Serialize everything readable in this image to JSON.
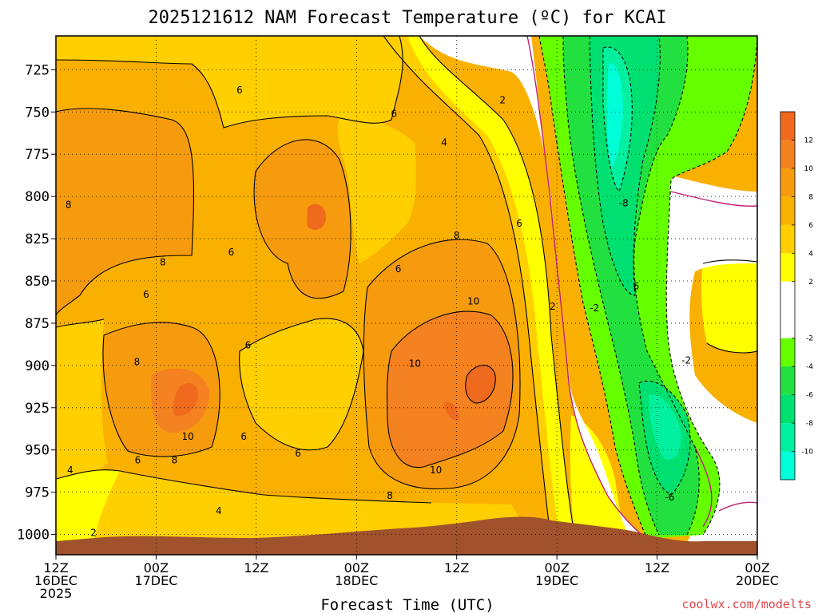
{
  "chart_data": {
    "type": "heatmap",
    "title": "2025121612 NAM Forecast Temperature (ºC) for KCAI",
    "xlabel": "Forecast Time (UTC)",
    "ylabel": "",
    "credit": "coolwx.com/modelts",
    "x_ticks": [
      {
        "hours": 0,
        "line1": "12Z",
        "line2": "16DEC",
        "line3": "2025"
      },
      {
        "hours": 12,
        "line1": "00Z",
        "line2": "17DEC",
        "line3": ""
      },
      {
        "hours": 24,
        "line1": "12Z",
        "line2": "",
        "line3": ""
      },
      {
        "hours": 36,
        "line1": "00Z",
        "line2": "18DEC",
        "line3": ""
      },
      {
        "hours": 48,
        "line1": "12Z",
        "line2": "",
        "line3": ""
      },
      {
        "hours": 60,
        "line1": "00Z",
        "line2": "19DEC",
        "line3": ""
      },
      {
        "hours": 72,
        "line1": "12Z",
        "line2": "",
        "line3": ""
      },
      {
        "hours": 84,
        "line1": "00Z",
        "line2": "20DEC",
        "line3": ""
      }
    ],
    "xlim": [
      0,
      84
    ],
    "y_ticks": [
      "725",
      "750",
      "775",
      "800",
      "825",
      "850",
      "875",
      "900",
      "925",
      "950",
      "975",
      "1000"
    ],
    "ylim": [
      705,
      1012
    ],
    "y_inverted": true,
    "grid": "dotted",
    "colorbar": {
      "ticks": [
        "12",
        "10",
        "8",
        "6",
        "4",
        "2",
        "-2",
        "-4",
        "-6",
        "-8",
        "-10"
      ],
      "bins": [
        {
          "from": 12,
          "to": 14,
          "color": "#f06a1e"
        },
        {
          "from": 10,
          "to": 12,
          "color": "#f58220"
        },
        {
          "from": 8,
          "to": 10,
          "color": "#f79b0e"
        },
        {
          "from": 6,
          "to": 8,
          "color": "#fab000"
        },
        {
          "from": 4,
          "to": 6,
          "color": "#ffcf00"
        },
        {
          "from": 2,
          "to": 4,
          "color": "#ffff00"
        },
        {
          "from": -2,
          "to": 2,
          "color": "#ffffff"
        },
        {
          "from": -4,
          "to": -2,
          "color": "#66ff00"
        },
        {
          "from": -6,
          "to": -4,
          "color": "#22e040"
        },
        {
          "from": -8,
          "to": -6,
          "color": "#00e070"
        },
        {
          "from": -10,
          "to": -8,
          "color": "#00f0a0"
        },
        {
          "from": -12,
          "to": -10,
          "color": "#00ffd8"
        }
      ]
    },
    "contour_labels": [
      {
        "text": "6",
        "hours": 22,
        "p": 737
      },
      {
        "text": "2",
        "hours": 53.5,
        "p": 743
      },
      {
        "text": "6",
        "hours": 40.5,
        "p": 751
      },
      {
        "text": "4",
        "hours": 46.5,
        "p": 768
      },
      {
        "text": "8",
        "hours": 1.5,
        "p": 805
      },
      {
        "text": "-8",
        "hours": 68,
        "p": 804
      },
      {
        "text": "6",
        "hours": 55.5,
        "p": 816
      },
      {
        "text": "8",
        "hours": 48,
        "p": 823
      },
      {
        "text": "6",
        "hours": 21,
        "p": 833
      },
      {
        "text": "8",
        "hours": 12.8,
        "p": 839
      },
      {
        "text": "6",
        "hours": 41,
        "p": 843
      },
      {
        "text": "6",
        "hours": 69.5,
        "p": 853
      },
      {
        "text": "6",
        "hours": 10.8,
        "p": 858
      },
      {
        "text": "10",
        "hours": 50,
        "p": 862
      },
      {
        "text": "2",
        "hours": 59.5,
        "p": 865
      },
      {
        "text": "-2",
        "hours": 64.5,
        "p": 866
      },
      {
        "text": "6",
        "hours": 23,
        "p": 888
      },
      {
        "text": "8",
        "hours": 9.7,
        "p": 898
      },
      {
        "text": "-2",
        "hours": 75.5,
        "p": 897
      },
      {
        "text": "10",
        "hours": 43,
        "p": 899
      },
      {
        "text": "10",
        "hours": 15.8,
        "p": 942
      },
      {
        "text": "6",
        "hours": 22.5,
        "p": 942
      },
      {
        "text": "6",
        "hours": 29,
        "p": 952
      },
      {
        "text": "6",
        "hours": 9.8,
        "p": 956
      },
      {
        "text": "8",
        "hours": 14.2,
        "p": 956
      },
      {
        "text": "4",
        "hours": 1.7,
        "p": 962
      },
      {
        "text": "10",
        "hours": 45.5,
        "p": 962
      },
      {
        "text": "8",
        "hours": 40,
        "p": 977
      },
      {
        "text": "-6",
        "hours": 73.5,
        "p": 978
      },
      {
        "text": "4",
        "hours": 19.5,
        "p": 986
      },
      {
        "text": "2",
        "hours": 4.5,
        "p": 999
      }
    ]
  }
}
